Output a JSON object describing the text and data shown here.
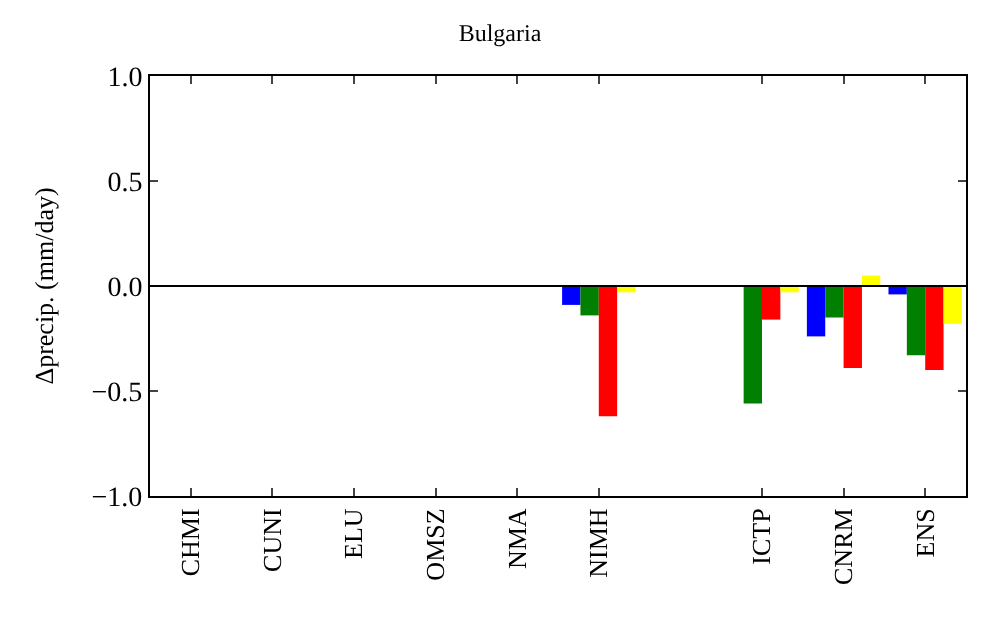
{
  "chart_data": {
    "type": "bar",
    "title": "Bulgaria",
    "ylabel": "Δprecip. (mm/day)",
    "categories": [
      "CHMI",
      "CUNI",
      "ELU",
      "OMSZ",
      "NMA",
      "NIMH",
      null,
      "ICTP",
      "CNRM",
      "ENS"
    ],
    "series": [
      {
        "color": "#0000ff",
        "values": [
          null,
          null,
          null,
          null,
          null,
          -0.09,
          null,
          null,
          -0.24,
          -0.04
        ]
      },
      {
        "color": "#007f00",
        "values": [
          null,
          null,
          null,
          null,
          null,
          -0.14,
          null,
          -0.56,
          -0.15,
          -0.33
        ]
      },
      {
        "color": "#ff0000",
        "values": [
          null,
          null,
          null,
          null,
          null,
          -0.62,
          null,
          -0.16,
          -0.39,
          -0.4
        ]
      },
      {
        "color": "#ffff00",
        "values": [
          null,
          null,
          null,
          null,
          null,
          -0.03,
          null,
          -0.03,
          0.05,
          -0.18
        ]
      }
    ],
    "ylim": [
      -1.0,
      1.0
    ],
    "yticks": [
      {
        "value": -1.0,
        "label": "−1.0"
      },
      {
        "value": -0.5,
        "label": "−0.5"
      },
      {
        "value": 0.0,
        "label": "0.0"
      },
      {
        "value": 0.5,
        "label": "0.5"
      },
      {
        "value": 1.0,
        "label": "1.0"
      }
    ],
    "ref_lines": [
      {
        "axis": "y",
        "value": 0,
        "color": "#000000"
      }
    ]
  }
}
